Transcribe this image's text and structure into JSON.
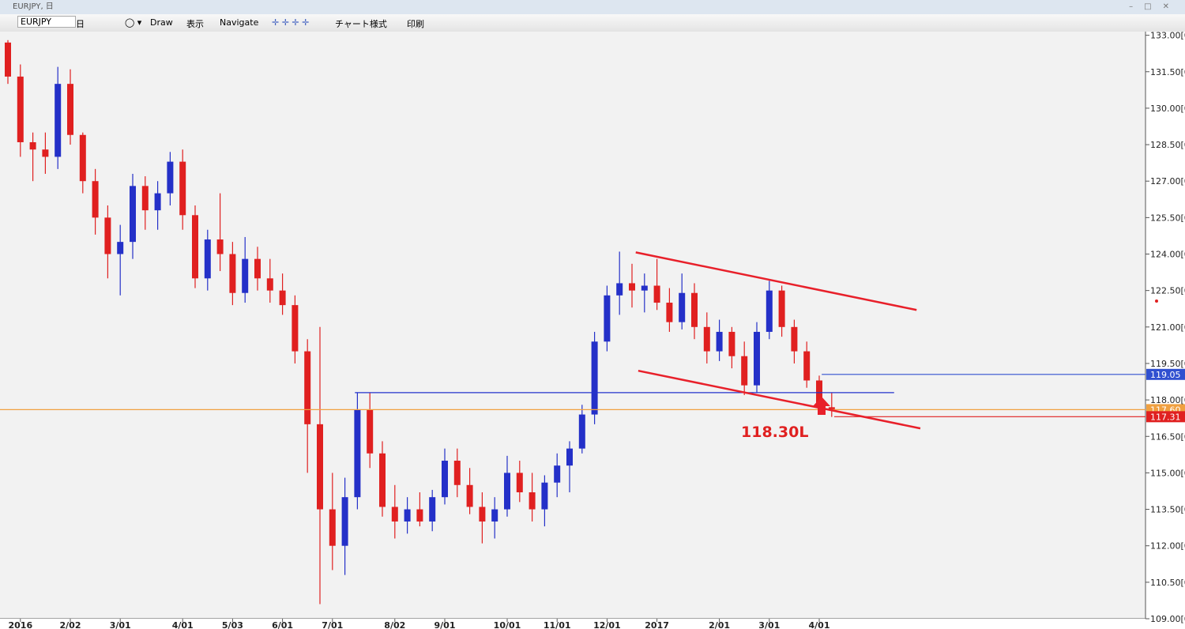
{
  "window_title": "EURJPY, 日",
  "toolbar": {
    "symbol": "EURJPY",
    "period": "日",
    "draw": "Draw",
    "view": "表示",
    "navigate": "Navigate",
    "chart_style": "チャート様式",
    "print": "印刷"
  },
  "chart_data": {
    "type": "candlestick",
    "up_color": "#2430c8",
    "down_color": "#e02020",
    "categories": [
      null,
      "2016",
      null,
      null,
      null,
      "2/02",
      null,
      null,
      null,
      "3/01",
      null,
      null,
      null,
      null,
      "4/01",
      null,
      null,
      null,
      "5/03",
      null,
      null,
      null,
      "6/01",
      null,
      null,
      null,
      "7/01",
      null,
      null,
      null,
      null,
      "8/02",
      null,
      null,
      null,
      "9/01",
      null,
      null,
      null,
      null,
      "10/01",
      null,
      null,
      null,
      "11/01",
      null,
      null,
      null,
      "12/01",
      null,
      null,
      null,
      "2017",
      null,
      null,
      null,
      null,
      "2/01",
      null,
      null,
      null,
      "3/01",
      null,
      null,
      null,
      "4/01",
      null
    ],
    "ohlc": [
      [
        132.7,
        132.8,
        131.0,
        131.3
      ],
      [
        131.3,
        131.8,
        128.0,
        128.6
      ],
      [
        128.6,
        129.0,
        127.0,
        128.3
      ],
      [
        128.3,
        129.0,
        127.3,
        128.0
      ],
      [
        128.0,
        131.7,
        127.5,
        131.0
      ],
      [
        131.0,
        131.6,
        128.5,
        128.9
      ],
      [
        128.9,
        129.0,
        126.5,
        127.0
      ],
      [
        127.0,
        127.5,
        124.8,
        125.5
      ],
      [
        125.5,
        126.0,
        123.0,
        124.0
      ],
      [
        124.0,
        125.2,
        122.3,
        124.5
      ],
      [
        124.5,
        127.3,
        123.8,
        126.8
      ],
      [
        126.8,
        127.2,
        125.0,
        125.8
      ],
      [
        125.8,
        127.0,
        125.0,
        126.5
      ],
      [
        126.5,
        128.2,
        126.0,
        127.8
      ],
      [
        127.8,
        128.3,
        125.0,
        125.6
      ],
      [
        125.6,
        126.0,
        122.6,
        123.0
      ],
      [
        123.0,
        125.0,
        122.5,
        124.6
      ],
      [
        124.6,
        126.5,
        123.3,
        124.0
      ],
      [
        124.0,
        124.5,
        121.9,
        122.4
      ],
      [
        122.4,
        124.7,
        122.0,
        123.8
      ],
      [
        123.8,
        124.3,
        122.5,
        123.0
      ],
      [
        123.0,
        123.8,
        122.0,
        122.5
      ],
      [
        122.5,
        123.2,
        121.5,
        121.9
      ],
      [
        121.9,
        122.3,
        119.5,
        120.0
      ],
      [
        120.0,
        120.5,
        115.0,
        117.0
      ],
      [
        117.0,
        121.0,
        109.6,
        113.5
      ],
      [
        113.5,
        115.0,
        111.0,
        112.0
      ],
      [
        112.0,
        114.8,
        110.8,
        114.0
      ],
      [
        114.0,
        118.3,
        113.5,
        117.6
      ],
      [
        117.6,
        118.3,
        115.2,
        115.8
      ],
      [
        115.8,
        116.3,
        113.2,
        113.6
      ],
      [
        113.6,
        114.5,
        112.3,
        113.0
      ],
      [
        113.0,
        114.0,
        112.5,
        113.5
      ],
      [
        113.5,
        114.2,
        112.8,
        113.0
      ],
      [
        113.0,
        114.3,
        112.6,
        114.0
      ],
      [
        114.0,
        116.0,
        113.7,
        115.5
      ],
      [
        115.5,
        116.0,
        114.0,
        114.5
      ],
      [
        114.5,
        115.2,
        113.3,
        113.6
      ],
      [
        113.6,
        114.2,
        112.1,
        113.0
      ],
      [
        113.0,
        114.0,
        112.3,
        113.5
      ],
      [
        113.5,
        115.7,
        113.2,
        115.0
      ],
      [
        115.0,
        115.5,
        113.8,
        114.2
      ],
      [
        114.2,
        115.0,
        113.0,
        113.5
      ],
      [
        113.5,
        114.9,
        112.8,
        114.6
      ],
      [
        114.6,
        115.8,
        114.0,
        115.3
      ],
      [
        115.3,
        116.3,
        114.2,
        116.0
      ],
      [
        116.0,
        117.8,
        115.8,
        117.4
      ],
      [
        117.4,
        120.8,
        117.0,
        120.4
      ],
      [
        120.4,
        122.7,
        120.0,
        122.3
      ],
      [
        122.3,
        124.1,
        121.5,
        122.8
      ],
      [
        122.8,
        123.6,
        121.8,
        122.5
      ],
      [
        122.5,
        123.2,
        121.6,
        122.7
      ],
      [
        122.7,
        123.8,
        121.7,
        122.0
      ],
      [
        122.0,
        122.6,
        120.8,
        121.2
      ],
      [
        121.2,
        123.2,
        120.9,
        122.4
      ],
      [
        122.4,
        122.8,
        120.5,
        121.0
      ],
      [
        121.0,
        121.6,
        119.5,
        120.0
      ],
      [
        120.0,
        121.3,
        119.6,
        120.8
      ],
      [
        120.8,
        121.0,
        119.3,
        119.8
      ],
      [
        119.8,
        120.4,
        118.2,
        118.6
      ],
      [
        118.6,
        121.2,
        118.3,
        120.8
      ],
      [
        120.8,
        122.9,
        120.5,
        122.5
      ],
      [
        122.5,
        122.7,
        120.6,
        121.0
      ],
      [
        121.0,
        121.3,
        119.5,
        120.0
      ],
      [
        120.0,
        120.4,
        118.5,
        118.8
      ],
      [
        118.8,
        119.0,
        117.5,
        117.7
      ],
      [
        117.7,
        118.3,
        117.3,
        117.6
      ]
    ],
    "ylim": [
      109,
      133.15
    ],
    "yticks": [
      {
        "value": 133,
        "label": "133.00[0"
      },
      {
        "value": 131.5,
        "label": "131.50[0"
      },
      {
        "value": 130,
        "label": "130.00[0"
      },
      {
        "value": 128.5,
        "label": "128.50[0"
      },
      {
        "value": 127,
        "label": "127.00[0"
      },
      {
        "value": 125.5,
        "label": "125.50[0"
      },
      {
        "value": 124,
        "label": "124.00[0"
      },
      {
        "value": 122.5,
        "label": "122.50[0"
      },
      {
        "value": 121,
        "label": "121.00[0"
      },
      {
        "value": 119.5,
        "label": "119.50[0"
      },
      {
        "value": 118,
        "label": "118.00[0"
      },
      {
        "value": 116.5,
        "label": "116.50[0"
      },
      {
        "value": 115,
        "label": "115.00[0"
      },
      {
        "value": 113.5,
        "label": "113.50[0"
      },
      {
        "value": 112,
        "label": "112.00[0"
      },
      {
        "value": 110.5,
        "label": "110.50[0"
      },
      {
        "value": 109,
        "label": "109.00[0"
      }
    ],
    "trendlines": [
      {
        "points": [
          [
            50.3,
            124.07
          ],
          [
            72.8,
            121.7
          ]
        ],
        "color": "#e8202a"
      },
      {
        "points": [
          [
            50.5,
            119.2
          ],
          [
            73.1,
            116.83
          ]
        ],
        "color": "#e8202a"
      }
    ],
    "hlines": [
      {
        "value": 118.3,
        "from": 27.8,
        "to": 71,
        "color": "#2233cc"
      },
      {
        "value": 117.6,
        "color": "#f0a040",
        "label": "117.60"
      },
      {
        "value": 119.05,
        "from": 65.2,
        "color": "#3050d0",
        "label": "119.05"
      },
      {
        "value": 117.31,
        "from": 66.2,
        "color": "#e02020",
        "label": "117.31"
      }
    ],
    "annotation": "118.30L"
  }
}
